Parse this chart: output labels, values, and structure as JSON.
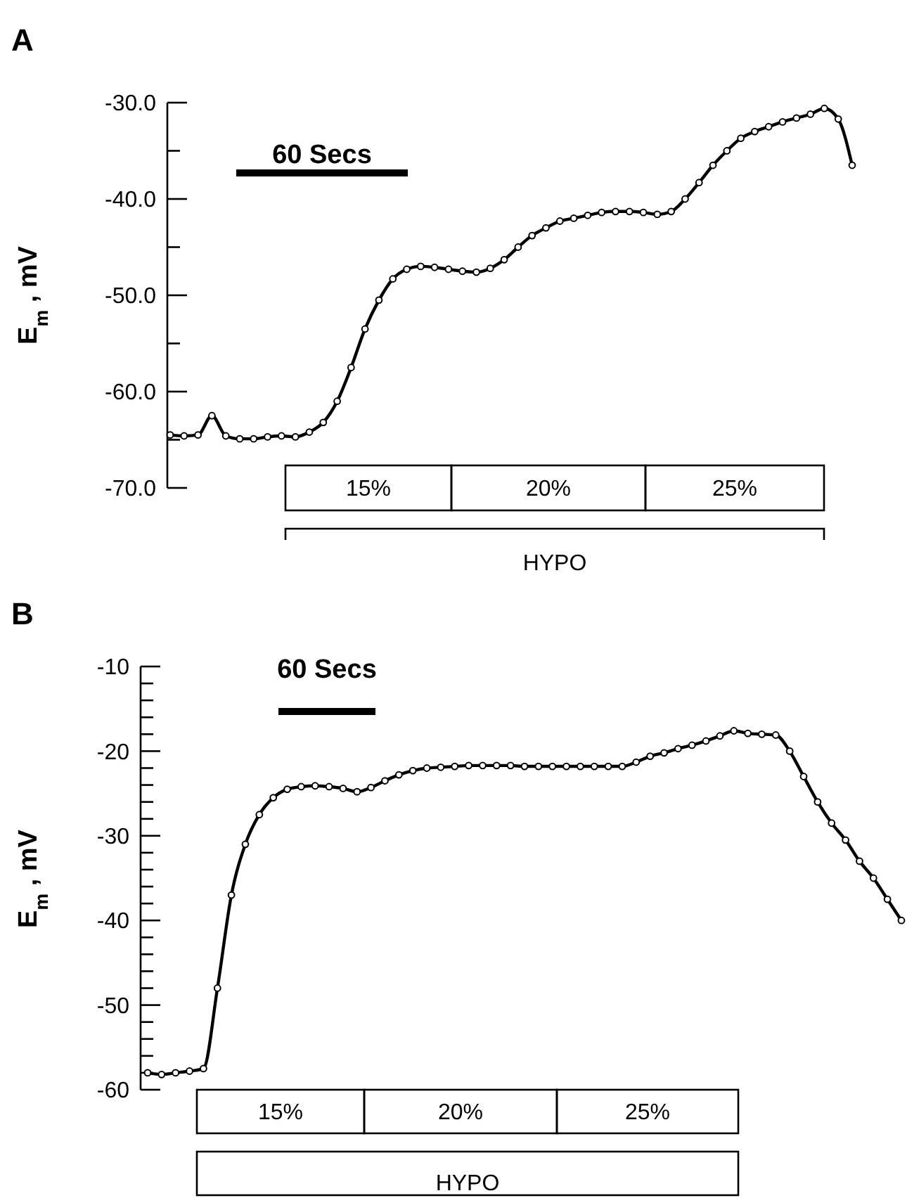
{
  "chart_data": [
    {
      "type": "line",
      "title": "A",
      "ylabel": "E$_{m}$, mV",
      "marker": "circle",
      "categories": [
        null,
        null,
        null,
        null,
        null,
        null,
        null,
        null,
        null,
        null,
        null,
        null,
        null,
        null,
        null,
        null,
        null,
        null,
        null,
        null,
        null,
        null,
        null,
        null,
        null,
        null,
        null,
        null,
        null,
        null,
        null,
        null,
        null,
        null,
        null,
        null,
        null,
        null,
        null,
        null,
        null,
        null,
        null,
        null,
        null,
        null,
        null,
        null,
        null,
        null
      ],
      "series": [
        {
          "color": "#000000",
          "values": [
            -64.5,
            -64.6,
            -64.5,
            -62.5,
            -64.6,
            -64.9,
            -64.9,
            -64.7,
            -64.6,
            -64.7,
            -64.2,
            -63.2,
            -61,
            -57.5,
            -53.5,
            -50.5,
            -48.3,
            -47.3,
            -47,
            -47.1,
            -47.3,
            -47.5,
            -47.6,
            -47.2,
            -46.3,
            -45,
            -43.8,
            -43,
            -42.3,
            -42,
            -41.7,
            -41.4,
            -41.3,
            -41.3,
            -41.4,
            -41.6,
            -41.3,
            -40,
            -38.3,
            -36.5,
            -35,
            -33.7,
            -33,
            -32.5,
            -32,
            -31.6,
            -31.2,
            -30.6,
            -31.7,
            -36.5
          ]
        }
      ],
      "ylim": [
        -70,
        -30
      ],
      "yticks": [
        {
          "value": -70,
          "label": "-70.0"
        },
        {
          "value": -65,
          "label": null
        },
        {
          "value": -60,
          "label": "-60.0"
        },
        {
          "value": -55,
          "label": null
        },
        {
          "value": -50,
          "label": "-50.0"
        },
        {
          "value": -45,
          "label": null
        },
        {
          "value": -40,
          "label": "-40.0"
        },
        {
          "value": -35,
          "label": null
        },
        {
          "value": -30,
          "label": "-30.0"
        }
      ],
      "tick_labels": "y",
      "annotations": [
        "60 Secs",
        "15%",
        "20%",
        "25%",
        "HYPO"
      ]
    },
    {
      "type": "line",
      "title": "B",
      "ylabel": "E$_{m}$, mV",
      "marker": "circle",
      "categories": [
        null,
        null,
        null,
        null,
        null,
        null,
        null,
        null,
        null,
        null,
        null,
        null,
        null,
        null,
        null,
        null,
        null,
        null,
        null,
        null,
        null,
        null,
        null,
        null,
        null,
        null,
        null,
        null,
        null,
        null,
        null,
        null,
        null,
        null,
        null,
        null,
        null,
        null,
        null,
        null,
        null,
        null,
        null,
        null,
        null,
        null,
        null,
        null,
        null,
        null,
        null,
        null,
        null,
        null,
        null
      ],
      "series": [
        {
          "color": "#000000",
          "values": [
            -58,
            -58.2,
            -58,
            -57.8,
            -57.5,
            -48,
            -37,
            -31,
            -27.5,
            -25.5,
            -24.5,
            -24.2,
            -24.1,
            -24.2,
            -24.4,
            -24.8,
            -24.3,
            -23.5,
            -22.8,
            -22.3,
            -22,
            -21.9,
            -21.8,
            -21.7,
            -21.7,
            -21.7,
            -21.7,
            -21.8,
            -21.8,
            -21.8,
            -21.8,
            -21.8,
            -21.8,
            -21.8,
            -21.8,
            -21.3,
            -20.6,
            -20.2,
            -19.7,
            -19.3,
            -18.8,
            -18.2,
            -17.6,
            -17.9,
            -18,
            -18.1,
            -20,
            -23,
            -26,
            -28.5,
            -30.5,
            -33,
            -35,
            -37.5,
            -40
          ]
        }
      ],
      "ylim": [
        -60,
        -10
      ],
      "yticks": [
        -60,
        {
          "value": -58,
          "label": null
        },
        {
          "value": -56,
          "label": null
        },
        {
          "value": -54,
          "label": null
        },
        {
          "value": -52,
          "label": null
        },
        -50,
        {
          "value": -48,
          "label": null
        },
        {
          "value": -46,
          "label": null
        },
        {
          "value": -44,
          "label": null
        },
        {
          "value": -42,
          "label": null
        },
        -40,
        {
          "value": -38,
          "label": null
        },
        {
          "value": -36,
          "label": null
        },
        {
          "value": -34,
          "label": null
        },
        {
          "value": -32,
          "label": null
        },
        -30,
        {
          "value": -28,
          "label": null
        },
        {
          "value": -26,
          "label": null
        },
        {
          "value": -24,
          "label": null
        },
        {
          "value": -22,
          "label": null
        },
        -20,
        {
          "value": -18,
          "label": null
        },
        {
          "value": -16,
          "label": null
        },
        {
          "value": -14,
          "label": null
        },
        {
          "value": -12,
          "label": null
        },
        -10
      ],
      "tick_labels": "y",
      "annotations": [
        "60 Secs",
        "15%",
        "20%",
        "25%",
        "HYPO"
      ]
    }
  ]
}
